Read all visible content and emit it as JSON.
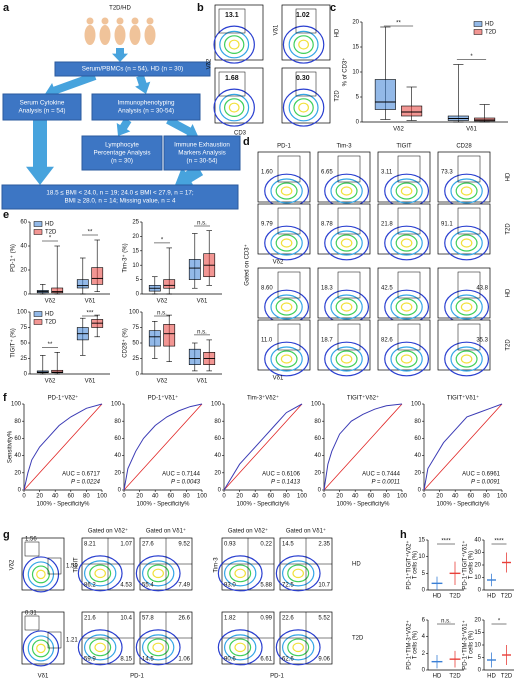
{
  "panels": [
    "a",
    "b",
    "c",
    "d",
    "e",
    "f",
    "g",
    "h"
  ],
  "flowchart": {
    "top": "T2D/HD",
    "boxes": [
      [
        "Serum/PBMCs (n = 54), HD (n = 30)"
      ],
      [
        "Serum Cytokine",
        "Analysis (n = 54)"
      ],
      [
        "Immunophenotyping",
        "Analysis (n = 30-54)"
      ],
      [
        "Lymphocyte",
        "Percentage Analysis",
        "(n = 30)"
      ],
      [
        "Immune Exhaustion",
        "Markers Analysis",
        "(n = 30-54)"
      ]
    ],
    "bmi": [
      "18.5 ≤ BMI < 24.0, n = 19; 24.0 ≤ BMI < 27.9, n = 17;",
      "BMI ≥ 28.0, n = 14; Missing value, n = 4"
    ]
  },
  "flow_b": {
    "x_label": "CD3",
    "y_labels": [
      "Vδ2",
      "Vδ1"
    ],
    "rows": [
      "HD",
      "T2D"
    ],
    "values": [
      [
        "13.1",
        "1.02"
      ],
      [
        "1.68",
        "0.30"
      ]
    ]
  },
  "flow_d": {
    "columns": [
      "PD-1",
      "Tim-3",
      "TIGIT",
      "CD28"
    ],
    "rows": [
      "HD",
      "T2D",
      "HD",
      "T2D"
    ],
    "values": [
      [
        "1.60",
        "6.65",
        "3.11",
        "73.3"
      ],
      [
        "9.79",
        "8.78",
        "21.8",
        "91.1"
      ],
      [
        "8.60",
        "18.3",
        "42.5",
        "43.8"
      ],
      [
        "11.0",
        "18.7",
        "82.6",
        "35.3"
      ]
    ],
    "gate": "Gated on CD3⁺",
    "x_labels": [
      "Vδ2",
      "Vδ1"
    ]
  },
  "flow_g": {
    "first_axes": [
      "Vδ2",
      "Vδ1"
    ],
    "gates": [
      "Gated on Vδ2⁺",
      "Gated on Vδ1⁺",
      "Gated on Vδ2⁺",
      "Gated on Vδ1⁺"
    ],
    "y_labels": [
      "TIGIT",
      "Tim-3"
    ],
    "x_label": "PD-1",
    "rows": [
      "HD",
      "T2D"
    ],
    "first_values": [
      [
        "1.56",
        "1.59"
      ],
      [
        "0.31",
        "1.21"
      ]
    ],
    "quadrants": [
      [
        [
          "8.21",
          "1.07",
          "86.2",
          "4.53"
        ],
        [
          "27.6",
          "9.52",
          "55.4",
          "7.49"
        ],
        [
          "0.93",
          "0.22",
          "93.0",
          "5.88"
        ],
        [
          "14.5",
          "2.35",
          "72.5",
          "10.7"
        ]
      ],
      [
        [
          "21.6",
          "10.4",
          "59.9",
          "8.15"
        ],
        [
          "57.8",
          "26.6",
          "14.5",
          "1.06"
        ],
        [
          "1.82",
          "0.99",
          "90.6",
          "6.61"
        ],
        [
          "22.6",
          "5.52",
          "62.6",
          "9.06"
        ]
      ]
    ]
  },
  "chart_data": [
    {
      "type": "box",
      "ylabel": "% of CD3⁺",
      "categories": [
        "Vδ2",
        "Vδ1"
      ],
      "ylim": [
        0,
        20
      ],
      "yticks": [
        0,
        5,
        10,
        15,
        20
      ],
      "legend": true,
      "significance": [
        "**",
        "*"
      ],
      "series": [
        {
          "name": "HD",
          "color": "#3a7fd5",
          "values": [
            {
              "min": 0.5,
              "q1": 2.5,
              "median": 4,
              "q3": 8.5,
              "max": 19
            },
            {
              "min": 0,
              "q1": 0.3,
              "median": 0.7,
              "q3": 1.2,
              "max": 11.5
            }
          ]
        },
        {
          "name": "T2D",
          "color": "#e8403a",
          "values": [
            {
              "min": 0.3,
              "q1": 1.2,
              "median": 2,
              "q3": 3.2,
              "max": 7
            },
            {
              "min": 0,
              "q1": 0.2,
              "median": 0.4,
              "q3": 0.8,
              "max": 3.5
            }
          ]
        }
      ]
    },
    {
      "type": "box",
      "ylabel": "PD-1⁺ (%)",
      "categories": [
        "Vδ2",
        "Vδ1"
      ],
      "ylim": [
        0,
        60
      ],
      "yticks": [
        0,
        20,
        40,
        60
      ],
      "legend": true,
      "significance": [
        "*",
        "**"
      ],
      "series": [
        {
          "name": "HD",
          "color": "#3a7fd5",
          "values": [
            {
              "min": 0,
              "q1": 1,
              "median": 2,
              "q3": 3,
              "max": 8
            },
            {
              "min": 0,
              "q1": 5,
              "median": 7,
              "q3": 12,
              "max": 30
            }
          ]
        },
        {
          "name": "T2D",
          "color": "#e8403a",
          "values": [
            {
              "min": 0,
              "q1": 1,
              "median": 2,
              "q3": 5,
              "max": 40
            },
            {
              "min": 2,
              "q1": 8,
              "median": 13,
              "q3": 22,
              "max": 45
            }
          ]
        }
      ]
    },
    {
      "type": "box",
      "ylabel": "Tim-3⁺ (%)",
      "categories": [
        "Vδ2",
        "Vδ1"
      ],
      "ylim": [
        0,
        25
      ],
      "yticks": [
        0,
        5,
        10,
        15,
        20,
        25
      ],
      "legend": false,
      "significance": [
        "*",
        "n.s."
      ],
      "series": [
        {
          "name": "HD",
          "color": "#3a7fd5",
          "values": [
            {
              "min": 0,
              "q1": 1,
              "median": 2,
              "q3": 3,
              "max": 6
            },
            {
              "min": 2,
              "q1": 5,
              "median": 9,
              "q3": 12,
              "max": 21
            }
          ]
        },
        {
          "name": "T2D",
          "color": "#e8403a",
          "values": [
            {
              "min": 0,
              "q1": 2,
              "median": 3,
              "q3": 5,
              "max": 16
            },
            {
              "min": 3,
              "q1": 6,
              "median": 10,
              "q3": 14,
              "max": 22
            }
          ]
        }
      ]
    },
    {
      "type": "box",
      "ylabel": "TIGIT⁺ (%)",
      "categories": [
        "Vδ2",
        "Vδ1"
      ],
      "ylim": [
        0,
        100
      ],
      "yticks": [
        0,
        25,
        50,
        75,
        100
      ],
      "legend": true,
      "significance": [
        "**",
        "***"
      ],
      "series": [
        {
          "name": "HD",
          "color": "#3a7fd5",
          "values": [
            {
              "min": 0,
              "q1": 2,
              "median": 3,
              "q3": 5,
              "max": 30
            },
            {
              "min": 30,
              "q1": 55,
              "median": 65,
              "q3": 75,
              "max": 90
            }
          ]
        },
        {
          "name": "T2D",
          "color": "#e8403a",
          "values": [
            {
              "min": 0,
              "q1": 2,
              "median": 3,
              "q3": 6,
              "max": 35
            },
            {
              "min": 60,
              "q1": 75,
              "median": 82,
              "q3": 88,
              "max": 95
            }
          ]
        }
      ]
    },
    {
      "type": "box",
      "ylabel": "CD28⁺ (%)",
      "categories": [
        "Vδ2",
        "Vδ1"
      ],
      "ylim": [
        0,
        100
      ],
      "yticks": [
        0,
        25,
        50,
        75,
        100
      ],
      "legend": false,
      "significance": [
        "n.s.",
        "n.s."
      ],
      "series": [
        {
          "name": "HD",
          "color": "#3a7fd5",
          "values": [
            {
              "min": 25,
              "q1": 45,
              "median": 60,
              "q3": 70,
              "max": 85
            },
            {
              "min": 5,
              "q1": 15,
              "median": 25,
              "q3": 40,
              "max": 50
            }
          ]
        },
        {
          "name": "T2D",
          "color": "#e8403a",
          "values": [
            {
              "min": 20,
              "q1": 45,
              "median": 65,
              "q3": 80,
              "max": 95
            },
            {
              "min": 5,
              "q1": 15,
              "median": 25,
              "q3": 35,
              "max": 55
            }
          ]
        }
      ]
    },
    {
      "type": "roc",
      "title": "PD-1⁺Vδ2⁺",
      "ylabel": "Sensitivity%",
      "xlabel": "100% - Specificity%",
      "color": "#3b3bb5",
      "x": [
        0,
        5,
        10,
        20,
        30,
        45,
        60,
        80,
        100
      ],
      "values": [
        0,
        20,
        35,
        50,
        60,
        75,
        85,
        95,
        100
      ],
      "xlim": [
        0,
        100
      ],
      "ylim": [
        0,
        100
      ],
      "xticks": [
        0,
        20,
        40,
        60,
        80,
        100
      ],
      "yticks": [
        0,
        20,
        40,
        60,
        80,
        100
      ],
      "annotations": [
        "AUC = 0.6717",
        "P = 0.0224"
      ]
    },
    {
      "type": "roc",
      "title": "PD-1⁺Vδ1⁺",
      "xlabel": "100% - Specificity%",
      "color": "#3b3bb5",
      "x": [
        0,
        5,
        15,
        25,
        40,
        55,
        70,
        85,
        100
      ],
      "values": [
        0,
        25,
        45,
        60,
        75,
        85,
        92,
        97,
        100
      ],
      "xlim": [
        0,
        100
      ],
      "ylim": [
        0,
        100
      ],
      "xticks": [
        0,
        20,
        40,
        60,
        80,
        100
      ],
      "yticks": [
        0,
        20,
        40,
        60,
        80,
        100
      ],
      "annotations": [
        "AUC = 0.7144",
        "P = 0.0043"
      ]
    },
    {
      "type": "roc",
      "title": "Tim-3⁺Vδ2⁺",
      "xlabel": "100% - Specificity%",
      "color": "#3b3bb5",
      "x": [
        0,
        10,
        20,
        35,
        50,
        65,
        80,
        100
      ],
      "values": [
        0,
        15,
        30,
        45,
        60,
        75,
        90,
        100
      ],
      "xlim": [
        0,
        100
      ],
      "ylim": [
        0,
        100
      ],
      "xticks": [
        0,
        20,
        40,
        60,
        80,
        100
      ],
      "yticks": [
        0,
        20,
        40,
        60,
        80,
        100
      ],
      "annotations": [
        "AUC = 0.6106",
        "P = 0.1413"
      ]
    },
    {
      "type": "roc",
      "title": "TIGIT⁺Vδ2⁺",
      "xlabel": "100% - Specificity%",
      "color": "#3b3bb5",
      "x": [
        0,
        5,
        10,
        20,
        35,
        50,
        65,
        80,
        100
      ],
      "values": [
        0,
        30,
        45,
        65,
        80,
        88,
        94,
        98,
        100
      ],
      "xlim": [
        0,
        100
      ],
      "ylim": [
        0,
        100
      ],
      "xticks": [
        0,
        20,
        40,
        60,
        80,
        100
      ],
      "yticks": [
        0,
        20,
        40,
        60,
        80,
        100
      ],
      "annotations": [
        "AUC = 0.7444",
        "P = 0.0011"
      ]
    },
    {
      "type": "roc",
      "title": "TIGIT⁺Vδ1⁺",
      "xlabel": "100% - Specificity%",
      "color": "#3b3bb5",
      "x": [
        0,
        5,
        15,
        25,
        40,
        55,
        70,
        85,
        100
      ],
      "values": [
        0,
        25,
        40,
        55,
        70,
        85,
        90,
        95,
        100
      ],
      "xlim": [
        0,
        100
      ],
      "ylim": [
        0,
        100
      ],
      "xticks": [
        0,
        20,
        40,
        60,
        80,
        100
      ],
      "yticks": [
        0,
        20,
        40,
        60,
        80,
        100
      ],
      "annotations": [
        "AUC = 0.6961",
        "P = 0.0091"
      ]
    },
    {
      "type": "meansd",
      "ylabel": [
        "PD-1⁺TIGIT⁺Vδ2⁺",
        "T cells (%)"
      ],
      "categories": [
        "HD",
        "T2D"
      ],
      "colors": [
        "#3a7fd5",
        "#e8403a"
      ],
      "values": [
        2,
        5
      ],
      "errors": [
        2,
        3.5
      ],
      "ylim": [
        0,
        15
      ],
      "yticks": [
        0,
        5,
        10,
        15
      ],
      "significance": "****"
    },
    {
      "type": "meansd",
      "ylabel": [
        "PD-1⁺TIGIT⁺Vδ1⁺",
        "T cells (%)"
      ],
      "categories": [
        "HD",
        "T2D"
      ],
      "colors": [
        "#3a7fd5",
        "#e8403a"
      ],
      "values": [
        8,
        22
      ],
      "errors": [
        5,
        8
      ],
      "ylim": [
        0,
        40
      ],
      "yticks": [
        0,
        10,
        20,
        30,
        40
      ],
      "significance": "****"
    },
    {
      "type": "meansd",
      "ylabel": [
        "PD-1⁺TIM-3⁺Vδ2⁺",
        "T cells (%)"
      ],
      "categories": [
        "HD",
        "T2D"
      ],
      "colors": [
        "#3a7fd5",
        "#e8403a"
      ],
      "values": [
        1,
        1.3
      ],
      "errors": [
        0.8,
        1
      ],
      "ylim": [
        0,
        6
      ],
      "yticks": [
        0,
        2,
        4,
        6
      ],
      "significance": "n.s."
    },
    {
      "type": "meansd",
      "ylabel": [
        "PD-1⁺TIM-3⁺Vδ1⁺",
        "T cells (%)"
      ],
      "categories": [
        "HD",
        "T2D"
      ],
      "colors": [
        "#3a7fd5",
        "#e8403a"
      ],
      "values": [
        4,
        6
      ],
      "errors": [
        3,
        4
      ],
      "ylim": [
        0,
        20
      ],
      "yticks": [
        0,
        5,
        10,
        15,
        20
      ],
      "significance": "*"
    }
  ]
}
